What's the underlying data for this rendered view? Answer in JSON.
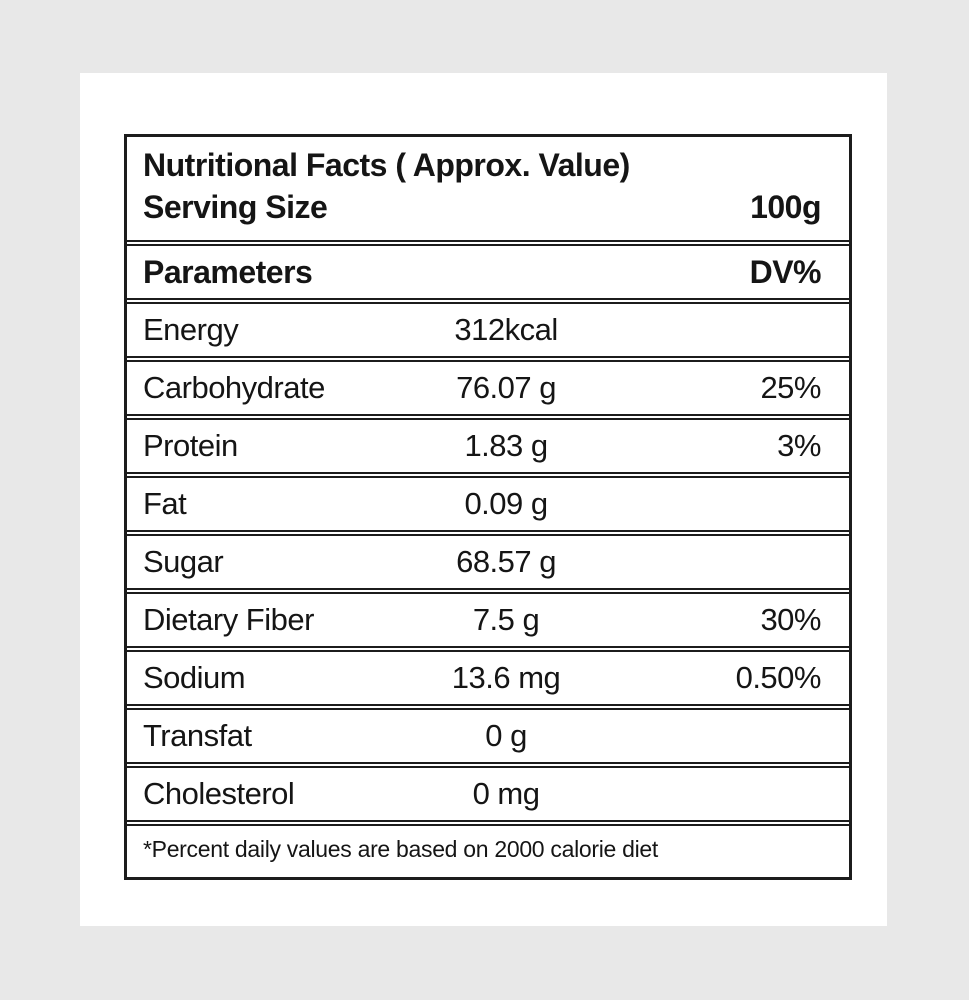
{
  "page": {
    "background_color": "#e8e8e8",
    "card_color": "#ffffff",
    "border_color": "#1c1c1c",
    "text_color": "#151515"
  },
  "label": {
    "title": "Nutritional Facts ( Approx. Value)",
    "serving_size_label": "Serving Size",
    "serving_size_value": "100g",
    "columns": {
      "parameter": "Parameters",
      "dv": "DV%"
    },
    "rows": [
      {
        "parameter": "Energy",
        "value": "312kcal",
        "dv": ""
      },
      {
        "parameter": "Carbohydrate",
        "value": "76.07 g",
        "dv": "25%"
      },
      {
        "parameter": "Protein",
        "value": "1.83 g",
        "dv": "3%"
      },
      {
        "parameter": "Fat",
        "value": "0.09 g",
        "dv": ""
      },
      {
        "parameter": "Sugar",
        "value": "68.57 g",
        "dv": ""
      },
      {
        "parameter": "Dietary Fiber",
        "value": "7.5 g",
        "dv": "30%"
      },
      {
        "parameter": "Sodium",
        "value": "13.6 mg",
        "dv": "0.50%"
      },
      {
        "parameter": "Transfat",
        "value": "0 g",
        "dv": ""
      },
      {
        "parameter": "Cholesterol",
        "value": "0 mg",
        "dv": ""
      }
    ],
    "footnote": "*Percent daily values are based on 2000 calorie diet"
  }
}
